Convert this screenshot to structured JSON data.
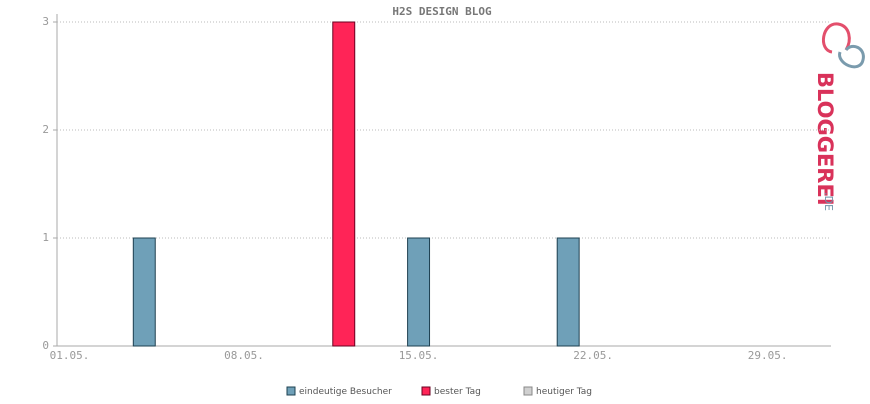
{
  "chart_data": {
    "type": "bar",
    "title": "H2S DESIGN BLOG",
    "categories": [
      "01.05.",
      null,
      null,
      null,
      null,
      null,
      null,
      "08.05.",
      null,
      null,
      null,
      null,
      null,
      null,
      "15.05.",
      null,
      null,
      null,
      null,
      null,
      null,
      "22.05.",
      null,
      null,
      null,
      null,
      null,
      null,
      "29.05.",
      null,
      null
    ],
    "series": [
      {
        "name": "eindeutige Besucher",
        "color": "#6fa0b8",
        "values": [
          0,
          0,
          0,
          1,
          0,
          0,
          0,
          0,
          0,
          0,
          0,
          null,
          0,
          0,
          1,
          0,
          0,
          0,
          0,
          0,
          1,
          0,
          0,
          0,
          0,
          0,
          0,
          0,
          0,
          0,
          0
        ]
      },
      {
        "name": "bester Tag",
        "color": "#ff2457",
        "values": [
          null,
          null,
          null,
          null,
          null,
          null,
          null,
          null,
          null,
          null,
          null,
          3,
          null,
          null,
          null,
          null,
          null,
          null,
          null,
          null,
          null,
          null,
          null,
          null,
          null,
          null,
          null,
          null,
          null,
          null,
          null
        ]
      },
      {
        "name": "heutiger Tag",
        "color": "#d0d0d0",
        "values": [
          null,
          null,
          null,
          null,
          null,
          null,
          null,
          null,
          null,
          null,
          null,
          null,
          null,
          null,
          null,
          null,
          null,
          null,
          null,
          null,
          null,
          null,
          null,
          null,
          null,
          null,
          null,
          null,
          null,
          null,
          null
        ]
      }
    ],
    "ylim": [
      0,
      3.05
    ],
    "yticks": [
      0,
      1,
      2,
      3
    ],
    "grid": true
  },
  "brand": {
    "name": "BLOGGEREI",
    "tld": ".DE"
  }
}
